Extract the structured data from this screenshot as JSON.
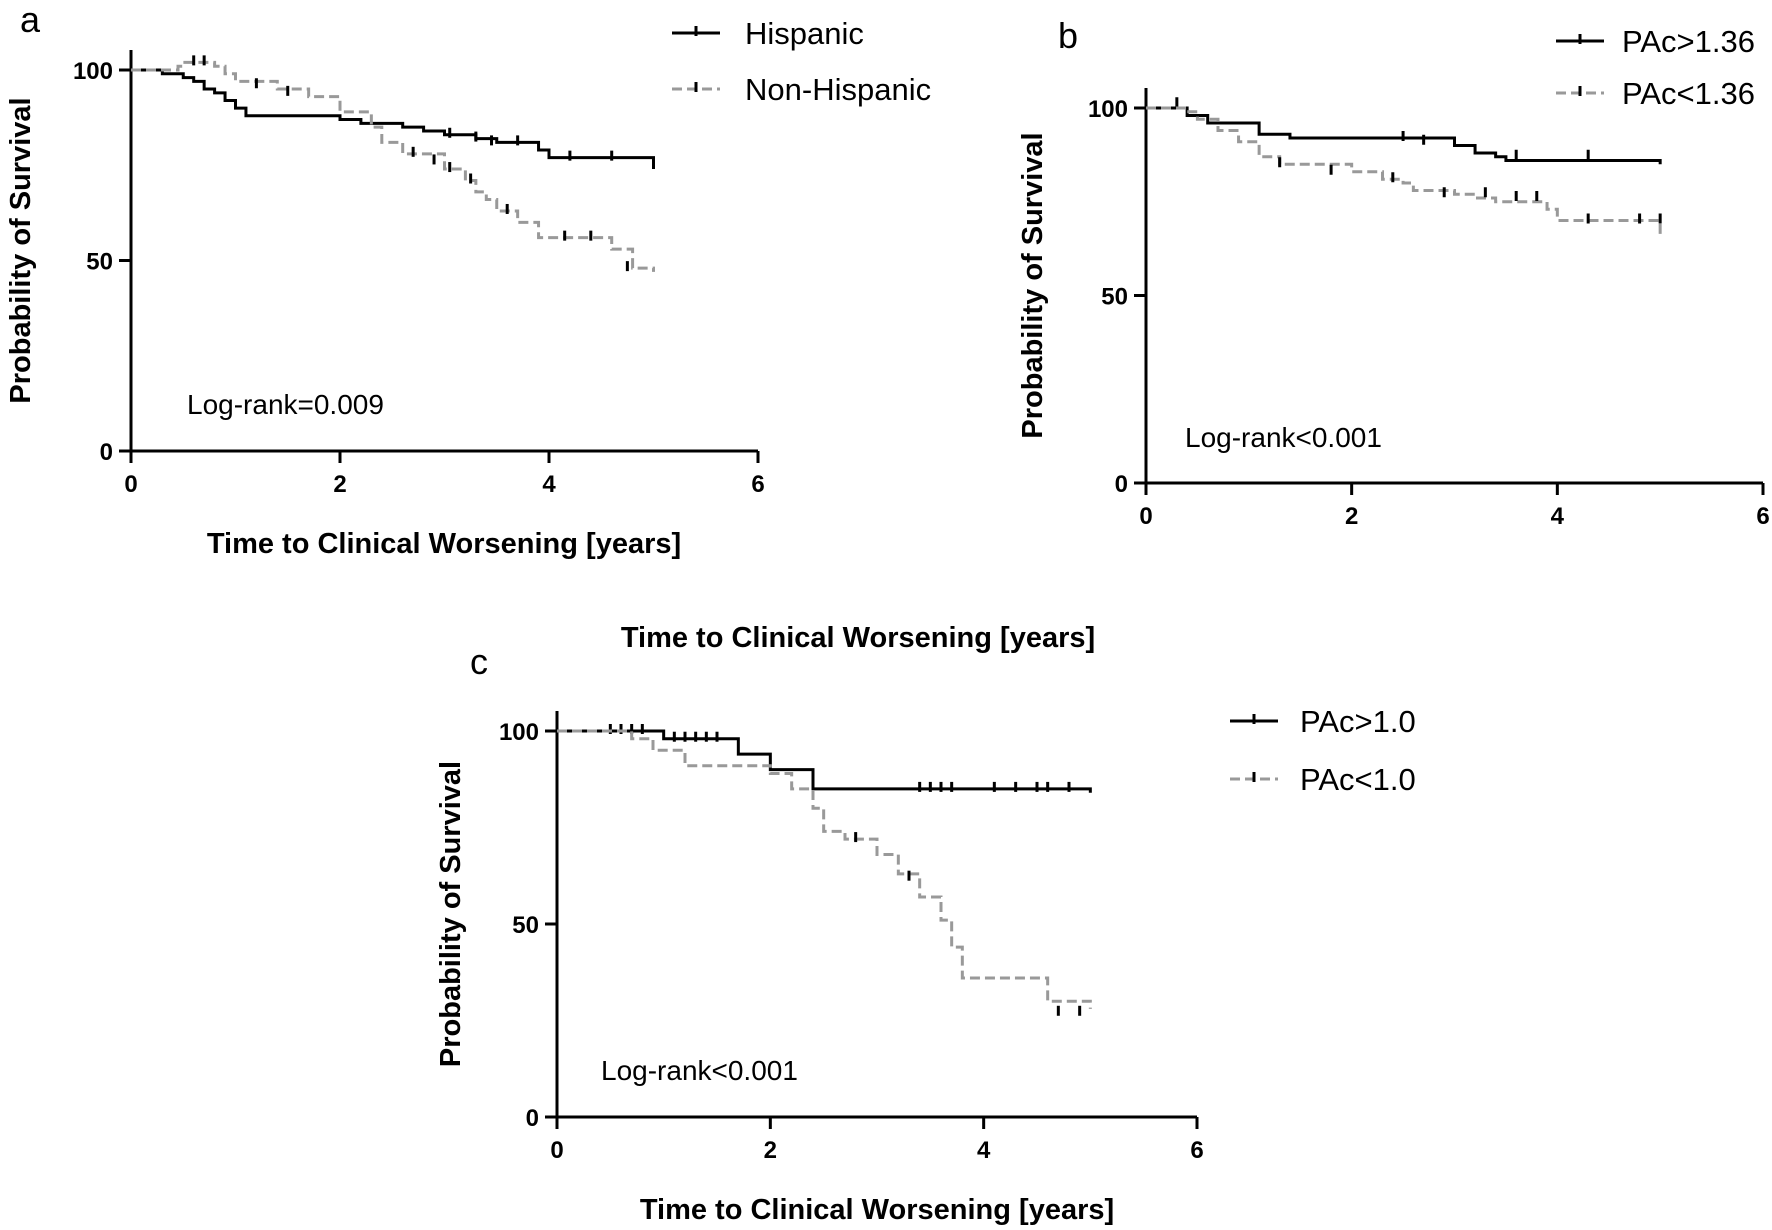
{
  "orphan_label": "Time to Clinical Worsening [years]",
  "chart_data": [
    {
      "type": "line",
      "panel": "a",
      "xlabel": "Time to Clinical Worsening [years]",
      "ylabel": "Probability of Survival",
      "xlim": [
        0,
        6
      ],
      "ylim": [
        0,
        100
      ],
      "xticks": [
        "0",
        "2",
        "4",
        "6"
      ],
      "yticks": [
        "0",
        "50",
        "100"
      ],
      "annotation": "Log-rank=0.009",
      "legend_position": "top-right",
      "series": [
        {
          "name": "Hispanic",
          "style": "solid",
          "color": "#000000",
          "x": [
            0,
            0.3,
            0.5,
            0.6,
            0.7,
            0.8,
            0.9,
            1.0,
            1.1,
            1.4,
            2.0,
            2.2,
            2.6,
            2.8,
            3.0,
            3.3,
            3.5,
            3.6,
            3.9,
            4.0,
            5.0
          ],
          "y": [
            100,
            99,
            98,
            97,
            95,
            94,
            92,
            90,
            88,
            88,
            87,
            86,
            85,
            84,
            83,
            82,
            81,
            81,
            79,
            77,
            74
          ],
          "censor_x": [
            3.05,
            3.3,
            3.45,
            3.7,
            4.2,
            4.6
          ],
          "censor_y": [
            83,
            82,
            81,
            81,
            77,
            77
          ]
        },
        {
          "name": "Non-Hispanic",
          "style": "dashed",
          "color": "#999999",
          "x": [
            0,
            0.3,
            0.45,
            0.5,
            0.8,
            0.9,
            1.0,
            1.4,
            1.7,
            2.0,
            2.3,
            2.4,
            2.6,
            3.0,
            3.2,
            3.3,
            3.4,
            3.5,
            3.7,
            3.9,
            4.6,
            4.8,
            5.0
          ],
          "y": [
            100,
            100,
            101,
            102,
            101,
            99,
            97,
            95,
            93,
            89,
            85,
            81,
            78,
            74,
            71,
            68,
            66,
            63,
            60,
            56,
            53,
            48,
            47
          ],
          "censor_x": [
            0.6,
            0.7,
            1.2,
            1.5,
            2.7,
            2.9,
            3.05,
            3.25,
            3.6,
            4.15,
            4.4,
            4.75
          ],
          "censor_y": [
            102,
            102,
            96,
            94,
            78,
            76,
            74,
            71,
            63,
            56,
            56,
            48
          ]
        }
      ]
    },
    {
      "type": "line",
      "panel": "b",
      "xlabel": "",
      "ylabel": "Probability of Survival",
      "xlim": [
        0,
        6
      ],
      "ylim": [
        0,
        100
      ],
      "xticks": [
        "0",
        "2",
        "4",
        "6"
      ],
      "yticks": [
        "0",
        "50",
        "100"
      ],
      "annotation": "Log-rank<0.001",
      "legend_position": "top-right",
      "series": [
        {
          "name": "PAc>1.36",
          "style": "solid",
          "color": "#000000",
          "x": [
            0,
            0.3,
            0.4,
            0.6,
            1.1,
            1.4,
            2.7,
            3.0,
            3.2,
            3.4,
            3.5,
            5.0
          ],
          "y": [
            100,
            100,
            98,
            96,
            93,
            92,
            92,
            90,
            88,
            87,
            86,
            85
          ],
          "censor_x": [
            0.3,
            2.5,
            2.7,
            3.6,
            4.3
          ],
          "censor_y": [
            101,
            92,
            91,
            87,
            87
          ]
        },
        {
          "name": "PAc<1.36",
          "style": "dashed",
          "color": "#999999",
          "x": [
            0,
            0.4,
            0.5,
            0.7,
            0.9,
            1.1,
            1.3,
            2.0,
            2.3,
            2.5,
            2.6,
            3.0,
            3.2,
            3.4,
            3.9,
            4.0,
            5.0
          ],
          "y": [
            100,
            99,
            97,
            94,
            91,
            87,
            85,
            83,
            81,
            80,
            78,
            77,
            76,
            75,
            73,
            70,
            66
          ],
          "censor_x": [
            1.3,
            1.8,
            2.4,
            2.9,
            3.3,
            3.6,
            3.8,
            4.3,
            4.8,
            5.0
          ],
          "censor_y": [
            85,
            83,
            81,
            77,
            77,
            76,
            76,
            70,
            70,
            70
          ]
        }
      ]
    },
    {
      "type": "line",
      "panel": "c",
      "xlabel": "Time to Clinical Worsening [years]",
      "ylabel": "Probability of Survival",
      "xlim": [
        0,
        6
      ],
      "ylim": [
        0,
        100
      ],
      "xticks": [
        "0",
        "2",
        "4",
        "6"
      ],
      "yticks": [
        "0",
        "50",
        "100"
      ],
      "annotation": "Log-rank<0.001",
      "legend_position": "top-right",
      "series": [
        {
          "name": "PAc>1.0",
          "style": "solid",
          "color": "#000000",
          "x": [
            0,
            1.0,
            1.7,
            2.0,
            2.4,
            5.0
          ],
          "y": [
            100,
            98,
            94,
            90,
            85,
            84
          ],
          "censor_x": [
            0.5,
            0.6,
            0.7,
            0.8,
            1.1,
            1.2,
            1.3,
            1.4,
            1.5,
            3.4,
            3.5,
            3.6,
            3.7,
            4.1,
            4.3,
            4.5,
            4.6,
            4.8
          ],
          "censor_y": [
            100,
            100,
            100,
            100,
            98,
            98,
            98,
            98,
            98,
            85,
            85,
            85,
            85,
            85,
            85,
            85,
            85,
            85
          ]
        },
        {
          "name": "PAc<1.0",
          "style": "dashed",
          "color": "#999999",
          "x": [
            0,
            0.7,
            0.9,
            1.2,
            2.0,
            2.2,
            2.4,
            2.5,
            2.7,
            3.0,
            3.2,
            3.4,
            3.6,
            3.7,
            3.8,
            4.6,
            5.0
          ],
          "y": [
            100,
            98,
            95,
            91,
            89,
            85,
            80,
            74,
            72,
            68,
            63,
            57,
            51,
            44,
            36,
            30,
            28
          ],
          "censor_x": [
            2.8,
            3.3,
            4.7,
            4.9
          ],
          "censor_y": [
            72,
            62,
            27,
            27
          ]
        }
      ]
    }
  ]
}
